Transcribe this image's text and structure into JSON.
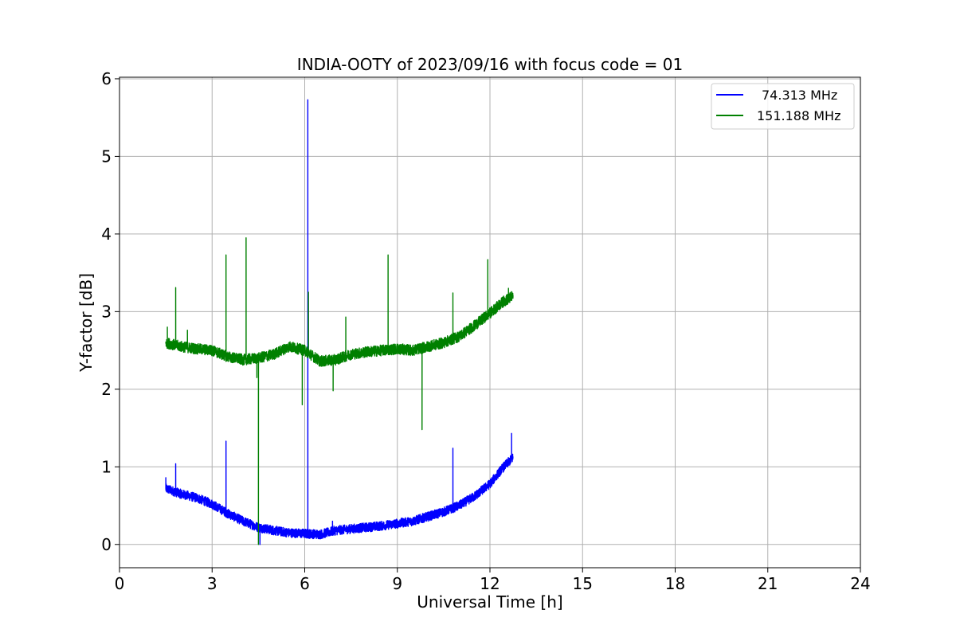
{
  "chart_data": {
    "type": "line",
    "title": "INDIA-OOTY of 2023/09/16 with focus code = 01",
    "xlabel": "Universal Time [h]",
    "ylabel": "Y-factor [dB]",
    "xlim": [
      0,
      24
    ],
    "ylim": [
      -0.3,
      6.02
    ],
    "xticks": [
      0,
      3,
      6,
      9,
      12,
      15,
      18,
      21,
      24
    ],
    "xtick_labels": [
      "0",
      "3",
      "6",
      "9",
      "12",
      "15",
      "18",
      "21",
      "24"
    ],
    "yticks": [
      0,
      1,
      2,
      3,
      4,
      5,
      6
    ],
    "ytick_labels": [
      "0",
      "1",
      "2",
      "3",
      "4",
      "5",
      "6"
    ],
    "grid": true,
    "legend_position": "top-right",
    "series": [
      {
        "name": "74.313 MHz",
        "color": "#0000ff",
        "noise": 0.06,
        "baseline": [
          [
            1.5,
            0.72
          ],
          [
            2.0,
            0.65
          ],
          [
            2.5,
            0.6
          ],
          [
            3.0,
            0.52
          ],
          [
            3.5,
            0.4
          ],
          [
            4.0,
            0.3
          ],
          [
            4.5,
            0.22
          ],
          [
            5.0,
            0.18
          ],
          [
            5.5,
            0.15
          ],
          [
            6.0,
            0.14
          ],
          [
            6.5,
            0.13
          ],
          [
            7.0,
            0.18
          ],
          [
            7.5,
            0.2
          ],
          [
            8.0,
            0.22
          ],
          [
            8.5,
            0.24
          ],
          [
            9.0,
            0.27
          ],
          [
            9.5,
            0.3
          ],
          [
            10.0,
            0.36
          ],
          [
            10.5,
            0.42
          ],
          [
            11.0,
            0.5
          ],
          [
            11.5,
            0.62
          ],
          [
            12.0,
            0.78
          ],
          [
            12.4,
            0.98
          ],
          [
            12.75,
            1.12
          ]
        ],
        "spikes": [
          [
            1.5,
            0.86
          ],
          [
            1.82,
            1.04
          ],
          [
            3.45,
            1.33
          ],
          [
            4.55,
            0.0
          ],
          [
            6.1,
            5.73
          ],
          [
            6.9,
            0.3
          ],
          [
            10.8,
            1.24
          ],
          [
            12.7,
            1.43
          ]
        ]
      },
      {
        "name": "151.188 MHz",
        "color": "#008000",
        "noise": 0.07,
        "baseline": [
          [
            1.5,
            2.6
          ],
          [
            2.0,
            2.55
          ],
          [
            2.5,
            2.52
          ],
          [
            3.0,
            2.5
          ],
          [
            3.5,
            2.42
          ],
          [
            4.0,
            2.38
          ],
          [
            4.5,
            2.4
          ],
          [
            5.0,
            2.45
          ],
          [
            5.5,
            2.55
          ],
          [
            6.0,
            2.5
          ],
          [
            6.5,
            2.36
          ],
          [
            7.0,
            2.38
          ],
          [
            7.5,
            2.45
          ],
          [
            8.0,
            2.48
          ],
          [
            8.5,
            2.5
          ],
          [
            9.0,
            2.52
          ],
          [
            9.5,
            2.5
          ],
          [
            10.0,
            2.55
          ],
          [
            10.5,
            2.6
          ],
          [
            11.0,
            2.68
          ],
          [
            11.5,
            2.82
          ],
          [
            12.0,
            2.98
          ],
          [
            12.4,
            3.12
          ],
          [
            12.75,
            3.2
          ]
        ],
        "spikes": [
          [
            1.55,
            2.8
          ],
          [
            1.82,
            3.31
          ],
          [
            2.2,
            2.76
          ],
          [
            3.45,
            3.73
          ],
          [
            4.1,
            3.95
          ],
          [
            4.45,
            2.15
          ],
          [
            4.5,
            0.0
          ],
          [
            5.92,
            1.8
          ],
          [
            6.12,
            3.25
          ],
          [
            6.92,
            1.98
          ],
          [
            7.33,
            2.93
          ],
          [
            8.7,
            3.73
          ],
          [
            9.8,
            1.48
          ],
          [
            10.8,
            3.24
          ],
          [
            11.93,
            3.67
          ],
          [
            12.6,
            3.3
          ]
        ]
      }
    ]
  }
}
